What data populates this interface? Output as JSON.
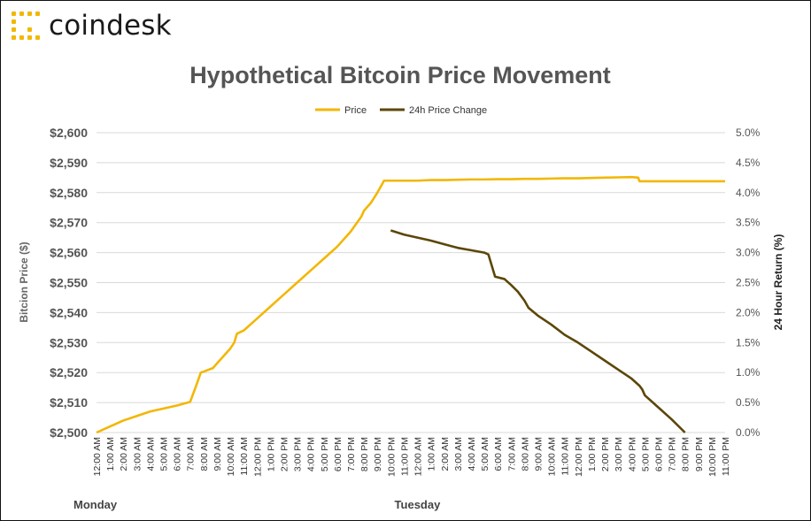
{
  "brand": {
    "name": "coindesk",
    "accent": "#f2b705"
  },
  "chart_data": {
    "type": "line",
    "title": "Hypothetical Bitcoin Price Movement",
    "ylabel": "Bitcion Price ($)",
    "y2label": "24 Hour Return (%)",
    "ylim": [
      2500,
      2600
    ],
    "y2lim": [
      0,
      5
    ],
    "yticks": [
      "$2,500",
      "$2,510",
      "$2,520",
      "$2,530",
      "$2,540",
      "$2,550",
      "$2,560",
      "$2,570",
      "$2,580",
      "$2,590",
      "$2,600"
    ],
    "y2ticks": [
      "0.0%",
      "0.5%",
      "1.0%",
      "1.5%",
      "2.0%",
      "2.5%",
      "3.0%",
      "3.5%",
      "4.0%",
      "4.5%",
      "5.0%"
    ],
    "x": [
      "12:00 AM",
      "1:00 AM",
      "2:00 AM",
      "3:00 AM",
      "4:00 AM",
      "5:00 AM",
      "6:00 AM",
      "7:00 AM",
      "8:00 AM",
      "9:00 AM",
      "10:00 AM",
      "11:00 AM",
      "12:00 PM",
      "1:00 PM",
      "2:00 PM",
      "3:00 PM",
      "4:00 PM",
      "5:00 PM",
      "6:00 PM",
      "7:00 PM",
      "8:00 PM",
      "9:00 PM",
      "10:00 PM",
      "11:00 PM",
      "12:00 AM",
      "1:00 AM",
      "2:00 AM",
      "3:00 AM",
      "4:00 AM",
      "5:00 AM",
      "6:00 AM",
      "7:00 AM",
      "8:00 AM",
      "9:00 AM",
      "10:00 AM",
      "11:00 AM",
      "12:00 PM",
      "1:00 PM",
      "2:00 PM",
      "3:00 PM",
      "4:00 PM",
      "5:00 PM",
      "6:00 PM",
      "7:00 PM",
      "8:00 PM",
      "9:00 PM",
      "10:00 PM",
      "11:00 PM"
    ],
    "day_labels": [
      {
        "label": "Monday",
        "index": 0
      },
      {
        "label": "Tuesday",
        "index": 24
      }
    ],
    "legend_position": "top-center",
    "grid": true,
    "series": [
      {
        "name": "Price",
        "color": "#f2b705",
        "axis": "left",
        "points": [
          [
            0,
            2500
          ],
          [
            1,
            2502
          ],
          [
            2,
            2504
          ],
          [
            3,
            2505.5
          ],
          [
            4,
            2507
          ],
          [
            5,
            2508
          ],
          [
            6,
            2509
          ],
          [
            7,
            2510.2
          ],
          [
            7.4,
            2515
          ],
          [
            7.8,
            2520
          ],
          [
            8,
            2520.3
          ],
          [
            8.7,
            2521.5
          ],
          [
            9,
            2523
          ],
          [
            9.6,
            2526
          ],
          [
            10,
            2528
          ],
          [
            10.3,
            2530
          ],
          [
            10.5,
            2533
          ],
          [
            11,
            2534
          ],
          [
            12,
            2538
          ],
          [
            13,
            2542
          ],
          [
            14,
            2546
          ],
          [
            15,
            2550
          ],
          [
            16,
            2554
          ],
          [
            17,
            2558
          ],
          [
            18,
            2562
          ],
          [
            19,
            2567
          ],
          [
            19.8,
            2572
          ],
          [
            20,
            2574
          ],
          [
            20.5,
            2576.5
          ],
          [
            21,
            2580
          ],
          [
            21.5,
            2584
          ],
          [
            24,
            2584
          ],
          [
            25,
            2584.2
          ],
          [
            26,
            2584.2
          ],
          [
            27,
            2584.3
          ],
          [
            28,
            2584.4
          ],
          [
            29,
            2584.4
          ],
          [
            30,
            2584.5
          ],
          [
            31,
            2584.5
          ],
          [
            32,
            2584.6
          ],
          [
            33,
            2584.6
          ],
          [
            34,
            2584.7
          ],
          [
            35,
            2584.8
          ],
          [
            36,
            2584.8
          ],
          [
            37,
            2584.9
          ],
          [
            38,
            2585
          ],
          [
            39,
            2585.1
          ],
          [
            40,
            2585.2
          ],
          [
            40.5,
            2585
          ],
          [
            40.6,
            2583.8
          ],
          [
            42,
            2583.8
          ],
          [
            44,
            2583.8
          ],
          [
            46,
            2583.8
          ],
          [
            47,
            2583.8
          ]
        ]
      },
      {
        "name": "24h Price Change",
        "color": "#5c4608",
        "axis": "right",
        "points": [
          [
            22,
            3.37
          ],
          [
            23,
            3.3
          ],
          [
            24,
            3.25
          ],
          [
            25,
            3.2
          ],
          [
            26,
            3.14
          ],
          [
            27,
            3.08
          ],
          [
            28,
            3.04
          ],
          [
            29,
            3.0
          ],
          [
            29.3,
            2.97
          ],
          [
            29.8,
            2.6
          ],
          [
            30.5,
            2.56
          ],
          [
            31,
            2.46
          ],
          [
            31.5,
            2.35
          ],
          [
            32,
            2.2
          ],
          [
            32.3,
            2.08
          ],
          [
            33,
            1.95
          ],
          [
            34,
            1.8
          ],
          [
            35,
            1.63
          ],
          [
            36,
            1.5
          ],
          [
            37,
            1.35
          ],
          [
            38,
            1.2
          ],
          [
            39,
            1.05
          ],
          [
            40,
            0.9
          ],
          [
            40.6,
            0.78
          ],
          [
            40.8,
            0.72
          ],
          [
            41,
            0.62
          ],
          [
            42,
            0.42
          ],
          [
            43,
            0.22
          ],
          [
            44,
            0.0
          ]
        ]
      }
    ]
  }
}
